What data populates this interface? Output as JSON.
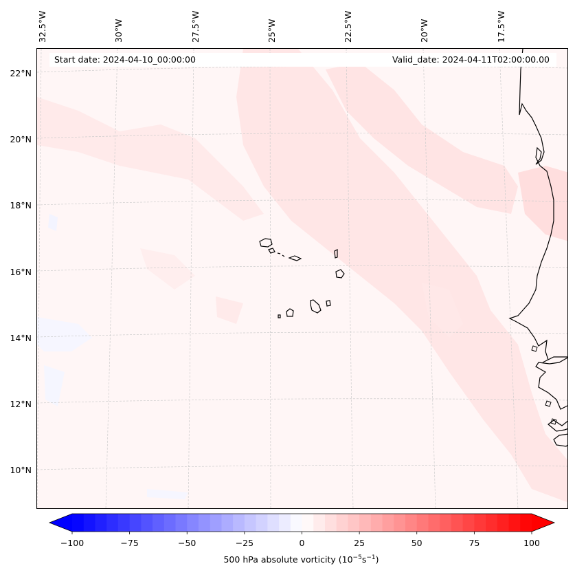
{
  "header": {
    "start_date": "Start date: 2024-04-10_00:00:00",
    "valid_date": "Valid_date: 2024-04-11T02:00:00.00"
  },
  "longitude_labels": [
    "32.5°W",
    "30°W",
    "27.5°W",
    "25°W",
    "22.5°W",
    "20°W",
    "17.5°W"
  ],
  "latitude_labels": [
    "22°N",
    "20°N",
    "18°N",
    "16°N",
    "14°N",
    "12°N",
    "10°N"
  ],
  "colorbar": {
    "ticks": [
      "−100",
      "−75",
      "−50",
      "−25",
      "0",
      "25",
      "50",
      "75",
      "100"
    ],
    "title_prefix": "500 hPa absolute vorticity (10",
    "title_exp1": "−5",
    "title_mid": "s",
    "title_exp2": "−1",
    "title_suffix": ")",
    "min": -100,
    "max": 100,
    "levels": 40,
    "low_color": "#0000ff",
    "mid_color": "#ffffff",
    "high_color": "#ff0000"
  },
  "colors": {
    "background_field": "#fff6f6",
    "vorticity_band": "#ffe1e1",
    "weak_negative": "#f3f4ff",
    "coastline": "#000000",
    "gridline": "#cccccc"
  }
}
